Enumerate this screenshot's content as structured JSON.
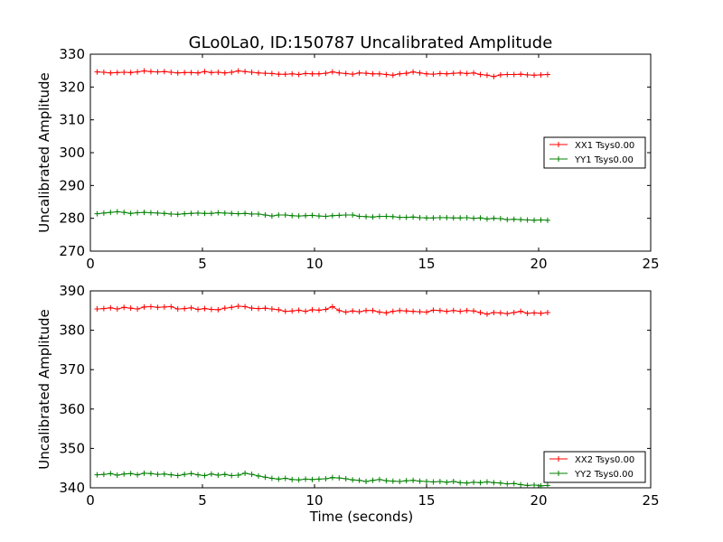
{
  "title": "GLo0La0, ID:150787 Uncalibrated Amplitude",
  "chart_data": [
    {
      "type": "line",
      "ylabel": "Uncalibrated Amplitude",
      "xlabel": "",
      "xlim": [
        0,
        25
      ],
      "ylim": [
        270,
        330
      ],
      "xticks": [
        0,
        5,
        10,
        15,
        20,
        25
      ],
      "yticks": [
        270,
        280,
        290,
        300,
        310,
        320,
        330
      ],
      "legend_position": "center-right",
      "series": [
        {
          "name": "XX1 Tsys0.00",
          "color": "#ff0000",
          "x": [
            0.3,
            0.6,
            0.9,
            1.2,
            1.5,
            1.8,
            2.1,
            2.4,
            2.7,
            3.0,
            3.3,
            3.6,
            3.9,
            4.2,
            4.5,
            4.8,
            5.1,
            5.4,
            5.7,
            6.0,
            6.3,
            6.6,
            6.9,
            7.2,
            7.5,
            7.8,
            8.1,
            8.4,
            8.7,
            9.0,
            9.3,
            9.6,
            9.9,
            10.2,
            10.5,
            10.8,
            11.1,
            11.4,
            11.7,
            12.0,
            12.3,
            12.6,
            12.9,
            13.2,
            13.5,
            13.8,
            14.1,
            14.4,
            14.7,
            15.0,
            15.3,
            15.6,
            15.9,
            16.2,
            16.5,
            16.8,
            17.1,
            17.4,
            17.7,
            18.0,
            18.3,
            18.6,
            18.9,
            19.2,
            19.5,
            19.8,
            20.1,
            20.4
          ],
          "values": [
            324.6,
            324.5,
            324.3,
            324.4,
            324.5,
            324.4,
            324.6,
            324.9,
            324.7,
            324.6,
            324.7,
            324.5,
            324.3,
            324.4,
            324.4,
            324.3,
            324.7,
            324.4,
            324.5,
            324.3,
            324.5,
            324.9,
            324.7,
            324.5,
            324.3,
            324.2,
            324.1,
            323.9,
            323.9,
            324.0,
            323.8,
            324.1,
            324.0,
            324.0,
            324.2,
            324.6,
            324.3,
            324.1,
            323.9,
            324.3,
            324.2,
            324.0,
            324.0,
            323.8,
            323.6,
            324.0,
            324.2,
            324.6,
            324.3,
            324.0,
            323.9,
            324.1,
            324.0,
            324.2,
            324.3,
            324.1,
            324.3,
            323.8,
            323.6,
            323.2,
            323.7,
            323.8,
            323.8,
            323.9,
            323.7,
            323.6,
            323.7,
            323.8
          ]
        },
        {
          "name": "YY1 Tsys0.00",
          "color": "#008000",
          "x": [
            0.3,
            0.6,
            0.9,
            1.2,
            1.5,
            1.8,
            2.1,
            2.4,
            2.7,
            3.0,
            3.3,
            3.6,
            3.9,
            4.2,
            4.5,
            4.8,
            5.1,
            5.4,
            5.7,
            6.0,
            6.3,
            6.6,
            6.9,
            7.2,
            7.5,
            7.8,
            8.1,
            8.4,
            8.7,
            9.0,
            9.3,
            9.6,
            9.9,
            10.2,
            10.5,
            10.8,
            11.1,
            11.4,
            11.7,
            12.0,
            12.3,
            12.6,
            12.9,
            13.2,
            13.5,
            13.8,
            14.1,
            14.4,
            14.7,
            15.0,
            15.3,
            15.6,
            15.9,
            16.2,
            16.5,
            16.8,
            17.1,
            17.4,
            17.7,
            18.0,
            18.3,
            18.6,
            18.9,
            19.2,
            19.5,
            19.8,
            20.1,
            20.4
          ],
          "values": [
            281.4,
            281.6,
            281.8,
            282.0,
            281.8,
            281.5,
            281.7,
            281.8,
            281.7,
            281.6,
            281.5,
            281.3,
            281.2,
            281.4,
            281.5,
            281.6,
            281.5,
            281.5,
            281.7,
            281.6,
            281.5,
            281.4,
            281.5,
            281.3,
            281.3,
            281.0,
            280.7,
            281.0,
            281.0,
            280.8,
            280.7,
            280.8,
            280.9,
            280.7,
            280.6,
            280.8,
            280.9,
            281.0,
            281.0,
            280.6,
            280.5,
            280.4,
            280.6,
            280.6,
            280.5,
            280.3,
            280.3,
            280.4,
            280.2,
            280.1,
            280.1,
            280.2,
            280.2,
            280.1,
            280.1,
            280.2,
            280.0,
            280.1,
            279.8,
            280.0,
            279.9,
            279.6,
            279.7,
            279.6,
            279.5,
            279.4,
            279.5,
            279.4
          ]
        }
      ]
    },
    {
      "type": "line",
      "ylabel": "Uncalibrated Amplitude",
      "xlabel": "Time (seconds)",
      "xlim": [
        0,
        25
      ],
      "ylim": [
        340,
        390
      ],
      "xticks": [
        0,
        5,
        10,
        15,
        20,
        25
      ],
      "yticks": [
        340,
        350,
        360,
        370,
        380,
        390
      ],
      "legend_position": "lower-right",
      "series": [
        {
          "name": "XX2 Tsys0.00",
          "color": "#ff0000",
          "x": [
            0.3,
            0.6,
            0.9,
            1.2,
            1.5,
            1.8,
            2.1,
            2.4,
            2.7,
            3.0,
            3.3,
            3.6,
            3.9,
            4.2,
            4.5,
            4.8,
            5.1,
            5.4,
            5.7,
            6.0,
            6.3,
            6.6,
            6.9,
            7.2,
            7.5,
            7.8,
            8.1,
            8.4,
            8.7,
            9.0,
            9.3,
            9.6,
            9.9,
            10.2,
            10.5,
            10.8,
            11.1,
            11.4,
            11.7,
            12.0,
            12.3,
            12.6,
            12.9,
            13.2,
            13.5,
            13.8,
            14.1,
            14.4,
            14.7,
            15.0,
            15.3,
            15.6,
            15.9,
            16.2,
            16.5,
            16.8,
            17.1,
            17.4,
            17.7,
            18.0,
            18.3,
            18.6,
            18.9,
            19.2,
            19.5,
            19.8,
            20.1,
            20.4
          ],
          "values": [
            385.4,
            385.5,
            385.7,
            385.4,
            385.8,
            385.6,
            385.4,
            385.9,
            386.0,
            385.8,
            385.9,
            386.0,
            385.4,
            385.5,
            385.7,
            385.3,
            385.5,
            385.3,
            385.2,
            385.6,
            385.8,
            386.1,
            386.0,
            385.6,
            385.5,
            385.6,
            385.4,
            385.2,
            384.8,
            384.9,
            385.1,
            384.8,
            385.2,
            385.1,
            385.3,
            386.0,
            385.0,
            384.6,
            384.9,
            384.7,
            385.0,
            385.0,
            384.6,
            384.4,
            384.8,
            385.0,
            384.9,
            384.8,
            384.7,
            384.6,
            385.1,
            385.0,
            384.8,
            385.0,
            384.8,
            385.0,
            384.9,
            384.5,
            384.1,
            384.5,
            384.4,
            384.2,
            384.5,
            384.8,
            384.3,
            384.4,
            384.3,
            384.5
          ]
        },
        {
          "name": "YY2 Tsys0.00",
          "color": "#008000",
          "x": [
            0.3,
            0.6,
            0.9,
            1.2,
            1.5,
            1.8,
            2.1,
            2.4,
            2.7,
            3.0,
            3.3,
            3.6,
            3.9,
            4.2,
            4.5,
            4.8,
            5.1,
            5.4,
            5.7,
            6.0,
            6.3,
            6.6,
            6.9,
            7.2,
            7.5,
            7.8,
            8.1,
            8.4,
            8.7,
            9.0,
            9.3,
            9.6,
            9.9,
            10.2,
            10.5,
            10.8,
            11.1,
            11.4,
            11.7,
            12.0,
            12.3,
            12.6,
            12.9,
            13.2,
            13.5,
            13.8,
            14.1,
            14.4,
            14.7,
            15.0,
            15.3,
            15.6,
            15.9,
            16.2,
            16.5,
            16.8,
            17.1,
            17.4,
            17.7,
            18.0,
            18.3,
            18.6,
            18.9,
            19.2,
            19.5,
            19.8,
            20.1,
            20.4
          ],
          "values": [
            343.3,
            343.4,
            343.6,
            343.2,
            343.5,
            343.6,
            343.3,
            343.7,
            343.6,
            343.4,
            343.5,
            343.3,
            343.1,
            343.4,
            343.6,
            343.3,
            343.1,
            343.5,
            343.2,
            343.4,
            343.1,
            343.2,
            343.7,
            343.4,
            343.0,
            342.7,
            342.4,
            342.2,
            342.4,
            342.1,
            342.0,
            342.2,
            342.1,
            342.2,
            342.3,
            342.6,
            342.5,
            342.3,
            342.0,
            341.9,
            341.6,
            341.9,
            342.1,
            341.8,
            341.7,
            341.6,
            341.8,
            341.9,
            341.7,
            341.6,
            341.5,
            341.6,
            341.4,
            341.6,
            341.3,
            341.2,
            341.4,
            341.3,
            341.5,
            341.3,
            341.2,
            341.0,
            341.1,
            340.8,
            340.6,
            340.7,
            340.5,
            340.6
          ]
        }
      ]
    }
  ]
}
